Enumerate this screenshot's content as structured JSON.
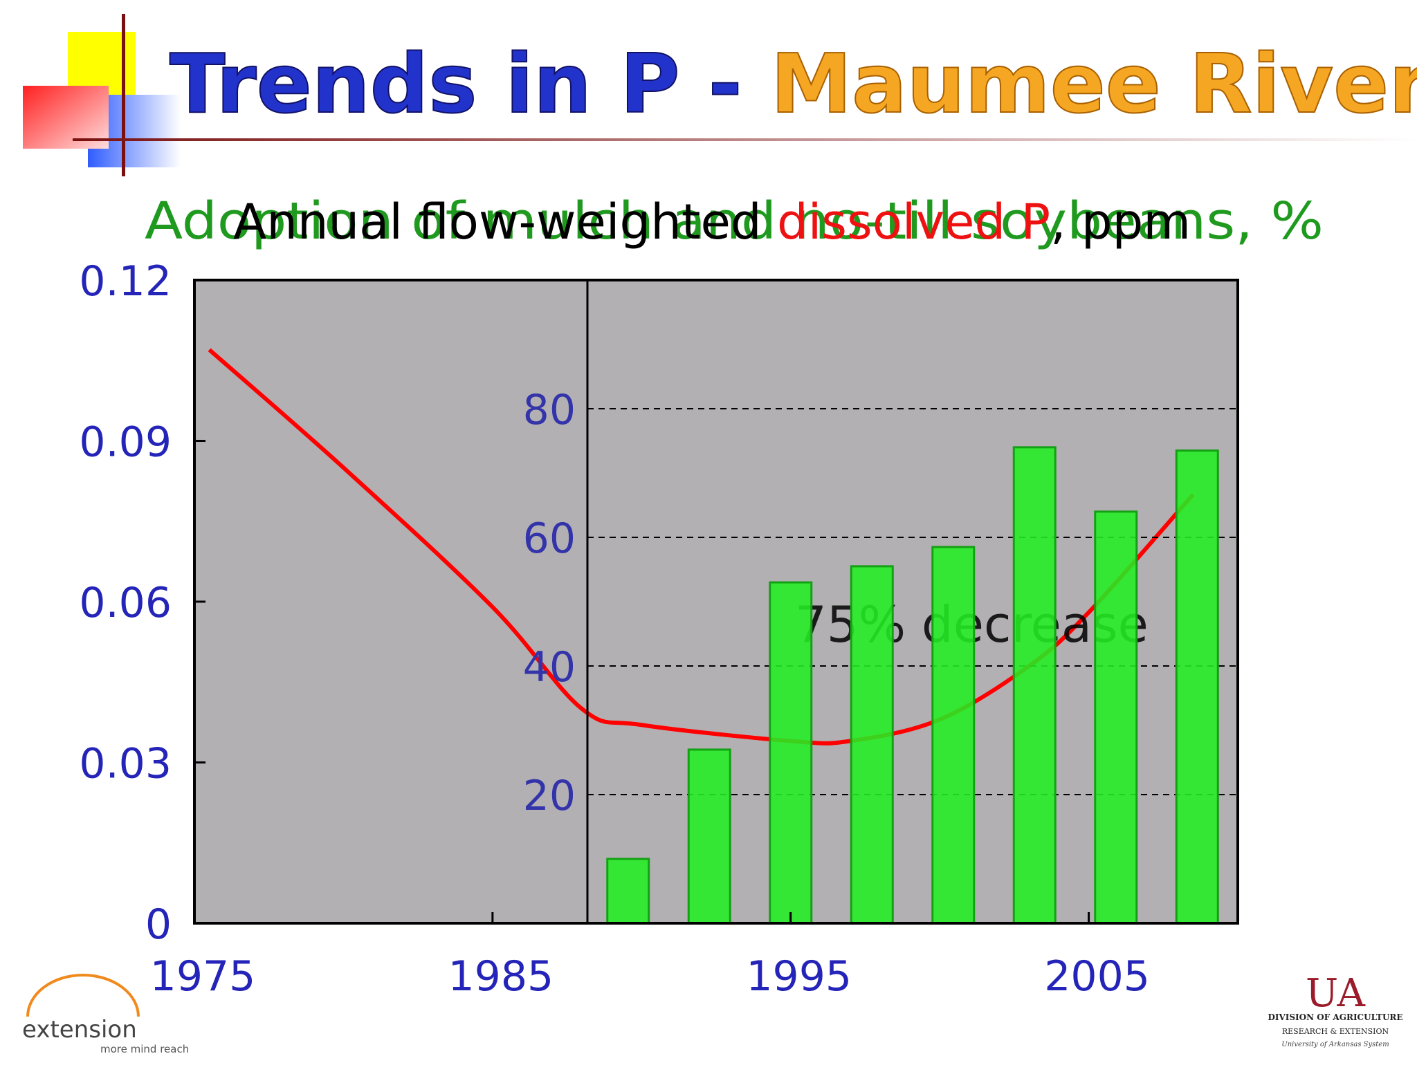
{
  "header": {
    "title_part1": "Trends in P - ",
    "title_part2": "Maumee River"
  },
  "chart_data": [
    {
      "type": "line",
      "title_parts": [
        "Annual flow-weighted ",
        "dissolved P",
        ", ppm"
      ],
      "x": [
        1975.5,
        1980,
        1985,
        1988,
        1990,
        1995,
        1997,
        2000,
        2003,
        2005,
        2008.5
      ],
      "y": [
        0.107,
        0.085,
        0.059,
        0.04,
        0.037,
        0.034,
        0.034,
        0.038,
        0.048,
        0.058,
        0.08
      ],
      "color": "#ff0000",
      "xlim": [
        1975,
        2010
      ],
      "xticks": [
        1975,
        1985,
        1995,
        2005
      ],
      "ylim": [
        0,
        0.12
      ],
      "yticks": [
        0,
        0.03,
        0.06,
        0.09,
        0.12
      ],
      "annotation": "75% decrease"
    },
    {
      "type": "bar",
      "title": "Adoption of mulch and no-till soybeans, %",
      "categories": [
        null,
        null,
        null,
        null,
        null,
        null,
        null,
        null
      ],
      "values": [
        10,
        27,
        53,
        55.5,
        58.5,
        74,
        64,
        73.5
      ],
      "color": "#22ee22",
      "ylim": [
        0,
        100
      ],
      "yticks": [
        20,
        40,
        60,
        80
      ],
      "grid": true
    }
  ],
  "logos": {
    "left": "extension",
    "left_tagline": "more mind reach",
    "right": "UA",
    "right_line1": "DIVISION OF AGRICULTURE",
    "right_line2": "RESEARCH & EXTENSION",
    "right_line3": "University of Arkansas System"
  }
}
